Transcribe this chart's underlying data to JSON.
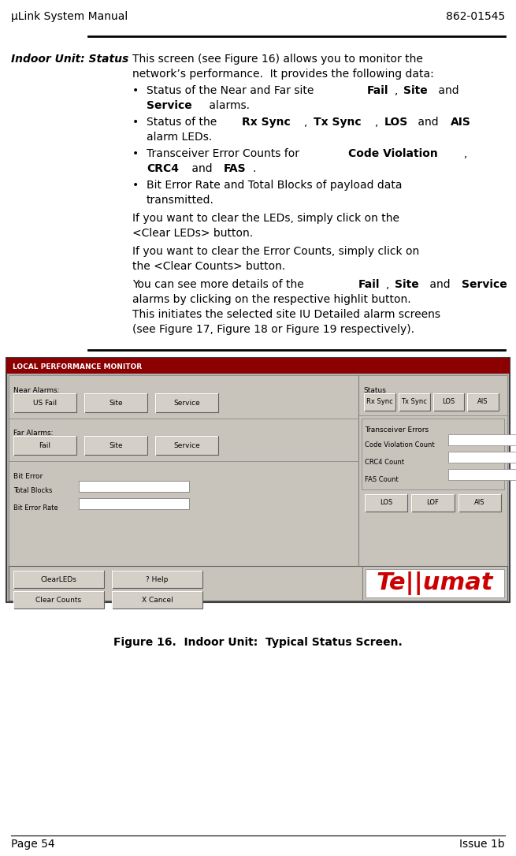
{
  "header_left": "μLink System Manual",
  "header_right": "862-01545",
  "footer_left": "Page 54",
  "footer_right": "Issue 1b",
  "section_title": "Indoor Unit: Status",
  "figure_caption": "Figure 16.  Indoor Unit:  Typical Status Screen.",
  "bg_color": "#ffffff",
  "text_color": "#000000",
  "header_fontsize": 10,
  "body_fontsize": 10,
  "section_title_fontsize": 10
}
